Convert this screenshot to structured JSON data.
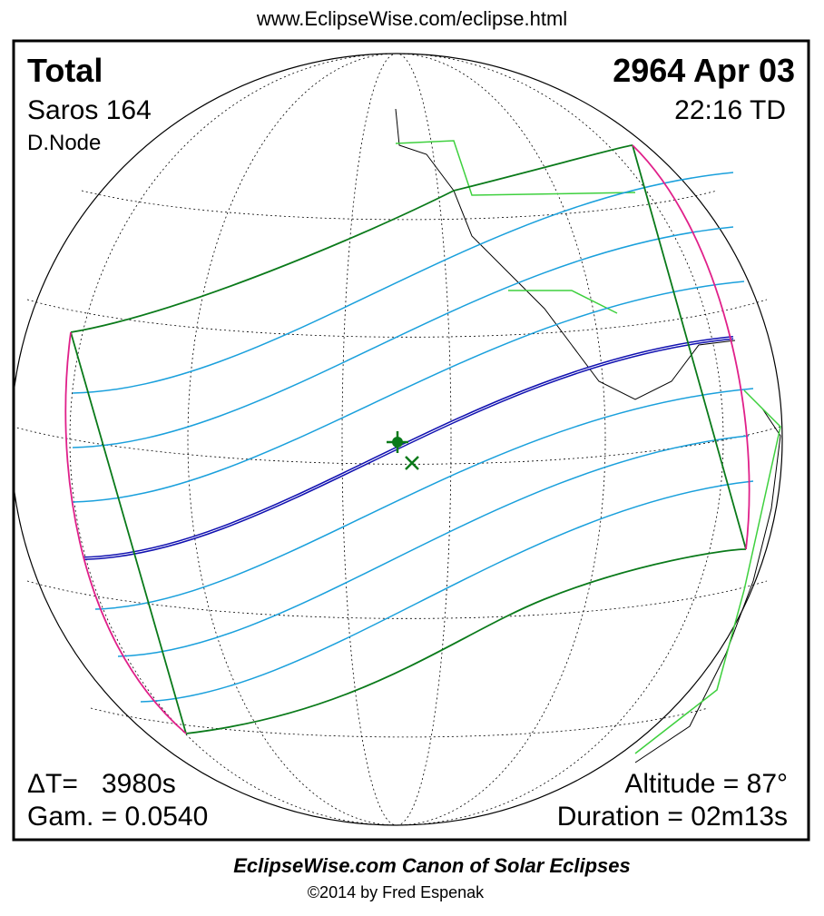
{
  "header": {
    "url": "www.EclipseWise.com/eclipse.html"
  },
  "eclipse": {
    "type": "Total",
    "date": "2964 Apr 03",
    "saros": "Saros 164",
    "time": "22:16 TD",
    "node": "D.Node",
    "delta_t_label": "ΔT=",
    "delta_t": "3980s",
    "gamma": "Gam. = 0.0540",
    "altitude": "Altitude = 87°",
    "duration": "Duration = 02m13s"
  },
  "footer": {
    "title": "EclipseWise.com Canon of Solar Eclipses",
    "copyright": "©2014 by Fred Espenak"
  }
}
